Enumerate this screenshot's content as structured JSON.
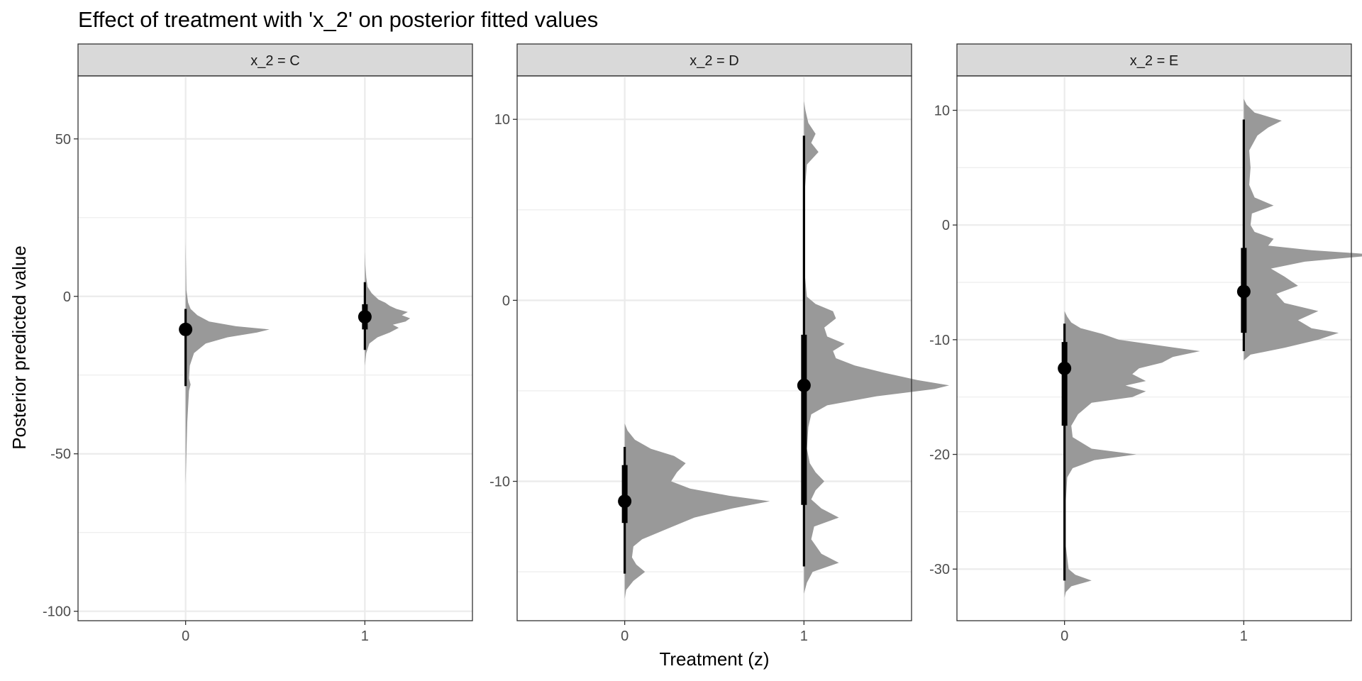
{
  "chart_data": {
    "type": "half-eye",
    "title": "Effect of treatment with 'x_2' on posterior fitted values",
    "xlabel": "Treatment (z)",
    "ylabel": "Posterior predicted value",
    "categories": [
      "0",
      "1"
    ],
    "grid": true,
    "facets": [
      {
        "label": "x_2 = C",
        "ylim": [
          -103,
          70
        ],
        "yticks": [
          50,
          0,
          -50,
          -100
        ],
        "minor_yticks": [
          25,
          -25,
          -75
        ],
        "groups": [
          {
            "x": "0",
            "median": -10.5,
            "inner": [
              -12.5,
              -9
            ],
            "outer": [
              -28.5,
              -4
            ],
            "scale": 0.52,
            "density": [
              [
                -60,
                0
              ],
              [
                -50,
                0.01
              ],
              [
                -40,
                0.02
              ],
              [
                -30,
                0.04
              ],
              [
                -28,
                0.06
              ],
              [
                -26,
                0.04
              ],
              [
                -22,
                0.05
              ],
              [
                -18,
                0.1
              ],
              [
                -15,
                0.24
              ],
              [
                -13,
                0.5
              ],
              [
                -11.5,
                0.85
              ],
              [
                -10.5,
                1.0
              ],
              [
                -9.5,
                0.6
              ],
              [
                -8,
                0.28
              ],
              [
                -6,
                0.14
              ],
              [
                -4,
                0.06
              ],
              [
                -2,
                0.03
              ],
              [
                2,
                0.01
              ],
              [
                10,
                0.005
              ],
              [
                18,
                0
              ]
            ]
          },
          {
            "x": "1",
            "median": -6.5,
            "inner": [
              -10.5,
              -2.5
            ],
            "outer": [
              -17,
              4.5
            ],
            "scale": 0.28,
            "density": [
              [
                -22,
                0
              ],
              [
                -18,
                0.03
              ],
              [
                -15,
                0.1
              ],
              [
                -13,
                0.28
              ],
              [
                -11.5,
                0.55
              ],
              [
                -10,
                0.75
              ],
              [
                -9,
                0.62
              ],
              [
                -8,
                0.9
              ],
              [
                -7,
                1.0
              ],
              [
                -6,
                0.82
              ],
              [
                -5,
                0.95
              ],
              [
                -4,
                0.7
              ],
              [
                -3,
                0.55
              ],
              [
                -2,
                0.45
              ],
              [
                -1,
                0.3
              ],
              [
                1,
                0.15
              ],
              [
                3,
                0.06
              ],
              [
                6,
                0.03
              ],
              [
                10,
                0.01
              ],
              [
                14,
                0
              ]
            ]
          }
        ]
      },
      {
        "label": "x_2 = D",
        "ylim": [
          -17.7,
          12.4
        ],
        "yticks": [
          10,
          0,
          -10
        ],
        "minor_yticks": [
          5,
          -5,
          -15
        ],
        "groups": [
          {
            "x": "0",
            "median": -11.1,
            "inner": [
              -12.3,
              -9.1
            ],
            "outer": [
              -15.1,
              -8.1
            ],
            "scale": 0.9,
            "density": [
              [
                -16.5,
                0
              ],
              [
                -16,
                0.01
              ],
              [
                -15.5,
                0.06
              ],
              [
                -15,
                0.14
              ],
              [
                -14.6,
                0.08
              ],
              [
                -14.2,
                0.05
              ],
              [
                -13.6,
                0.06
              ],
              [
                -13.2,
                0.12
              ],
              [
                -12.6,
                0.3
              ],
              [
                -12,
                0.48
              ],
              [
                -11.5,
                0.74
              ],
              [
                -11.1,
                1.0
              ],
              [
                -10.8,
                0.72
              ],
              [
                -10.4,
                0.45
              ],
              [
                -10,
                0.32
              ],
              [
                -9.5,
                0.36
              ],
              [
                -9,
                0.42
              ],
              [
                -8.6,
                0.34
              ],
              [
                -8.2,
                0.18
              ],
              [
                -7.7,
                0.07
              ],
              [
                -7.2,
                0.02
              ],
              [
                -6.8,
                0
              ]
            ]
          },
          {
            "x": "1",
            "median": -4.7,
            "inner": [
              -11.3,
              -1.9
            ],
            "outer": [
              -14.7,
              9.1
            ],
            "scale": 0.9,
            "density": [
              [
                -16.2,
                0
              ],
              [
                -15.6,
                0.02
              ],
              [
                -15,
                0.06
              ],
              [
                -14.5,
                0.24
              ],
              [
                -14,
                0.12
              ],
              [
                -13.2,
                0.05
              ],
              [
                -12.5,
                0.07
              ],
              [
                -12,
                0.24
              ],
              [
                -11.5,
                0.12
              ],
              [
                -11,
                0.05
              ],
              [
                -10.5,
                0.08
              ],
              [
                -10,
                0.14
              ],
              [
                -9.5,
                0.08
              ],
              [
                -9,
                0.04
              ],
              [
                -8.2,
                0.02
              ],
              [
                -7,
                0.03
              ],
              [
                -6.3,
                0.05
              ],
              [
                -5.8,
                0.16
              ],
              [
                -5.3,
                0.5
              ],
              [
                -4.9,
                0.9
              ],
              [
                -4.7,
                1.0
              ],
              [
                -4.4,
                0.78
              ],
              [
                -4,
                0.55
              ],
              [
                -3.6,
                0.35
              ],
              [
                -3.2,
                0.22
              ],
              [
                -2.8,
                0.2
              ],
              [
                -2.4,
                0.28
              ],
              [
                -2,
                0.16
              ],
              [
                -1.5,
                0.14
              ],
              [
                -1,
                0.22
              ],
              [
                -0.6,
                0.2
              ],
              [
                -0.2,
                0.08
              ],
              [
                0.2,
                0.02
              ],
              [
                1.5,
                0.005
              ],
              [
                6,
                0.005
              ],
              [
                7.5,
                0.02
              ],
              [
                8.2,
                0.1
              ],
              [
                8.7,
                0.05
              ],
              [
                9.2,
                0.08
              ],
              [
                9.8,
                0.03
              ],
              [
                10.5,
                0.01
              ],
              [
                11,
                0
              ]
            ]
          }
        ]
      },
      {
        "label": "x_2 = E",
        "ylim": [
          -34.5,
          13
        ],
        "yticks": [
          10,
          0,
          -10,
          -20,
          -30
        ],
        "minor_yticks": [
          5,
          -5,
          -15,
          -25
        ],
        "groups": [
          {
            "x": "0",
            "median": -12.5,
            "inner": [
              -17.5,
              -10.2
            ],
            "outer": [
              -31,
              -8.6
            ],
            "scale": 0.84,
            "density": [
              [
                -32.5,
                0
              ],
              [
                -32,
                0.01
              ],
              [
                -31.5,
                0.05
              ],
              [
                -31,
                0.2
              ],
              [
                -30.5,
                0.08
              ],
              [
                -30,
                0.03
              ],
              [
                -28,
                0.01
              ],
              [
                -24,
                0.01
              ],
              [
                -22,
                0.02
              ],
              [
                -21.2,
                0.06
              ],
              [
                -20.5,
                0.22
              ],
              [
                -20,
                0.53
              ],
              [
                -19.5,
                0.2
              ],
              [
                -18.5,
                0.06
              ],
              [
                -17.5,
                0.05
              ],
              [
                -16.5,
                0.1
              ],
              [
                -15.5,
                0.2
              ],
              [
                -15,
                0.5
              ],
              [
                -14.5,
                0.6
              ],
              [
                -14,
                0.45
              ],
              [
                -13.6,
                0.6
              ],
              [
                -13,
                0.5
              ],
              [
                -12.5,
                0.55
              ],
              [
                -12,
                0.72
              ],
              [
                -11.5,
                0.8
              ],
              [
                -11,
                1.0
              ],
              [
                -10.5,
                0.7
              ],
              [
                -10,
                0.4
              ],
              [
                -9.5,
                0.28
              ],
              [
                -9,
                0.12
              ],
              [
                -8.5,
                0.05
              ],
              [
                -8,
                0.02
              ],
              [
                -7.5,
                0
              ]
            ]
          },
          {
            "x": "1",
            "median": -5.8,
            "inner": [
              -9.4,
              -2
            ],
            "outer": [
              -11,
              9.2
            ],
            "scale": 0.84,
            "density": [
              [
                -11.8,
                0
              ],
              [
                -11.3,
                0.05
              ],
              [
                -10.7,
                0.3
              ],
              [
                -10,
                0.55
              ],
              [
                -9.4,
                0.7
              ],
              [
                -9,
                0.5
              ],
              [
                -8.3,
                0.4
              ],
              [
                -7.5,
                0.55
              ],
              [
                -6.8,
                0.3
              ],
              [
                -6,
                0.24
              ],
              [
                -5.3,
                0.4
              ],
              [
                -4.5,
                0.3
              ],
              [
                -3.8,
                0.2
              ],
              [
                -3.2,
                0.45
              ],
              [
                -2.6,
                1.0
              ],
              [
                -2.2,
                0.5
              ],
              [
                -1.8,
                0.18
              ],
              [
                -1.2,
                0.22
              ],
              [
                -0.6,
                0.08
              ],
              [
                0,
                0.05
              ],
              [
                1,
                0.06
              ],
              [
                1.7,
                0.22
              ],
              [
                2.4,
                0.08
              ],
              [
                3.5,
                0.04
              ],
              [
                5,
                0.05
              ],
              [
                6.5,
                0.04
              ],
              [
                7.8,
                0.1
              ],
              [
                8.5,
                0.18
              ],
              [
                9.1,
                0.28
              ],
              [
                9.8,
                0.08
              ],
              [
                10.5,
                0.02
              ],
              [
                11,
                0
              ]
            ]
          }
        ]
      }
    ]
  }
}
